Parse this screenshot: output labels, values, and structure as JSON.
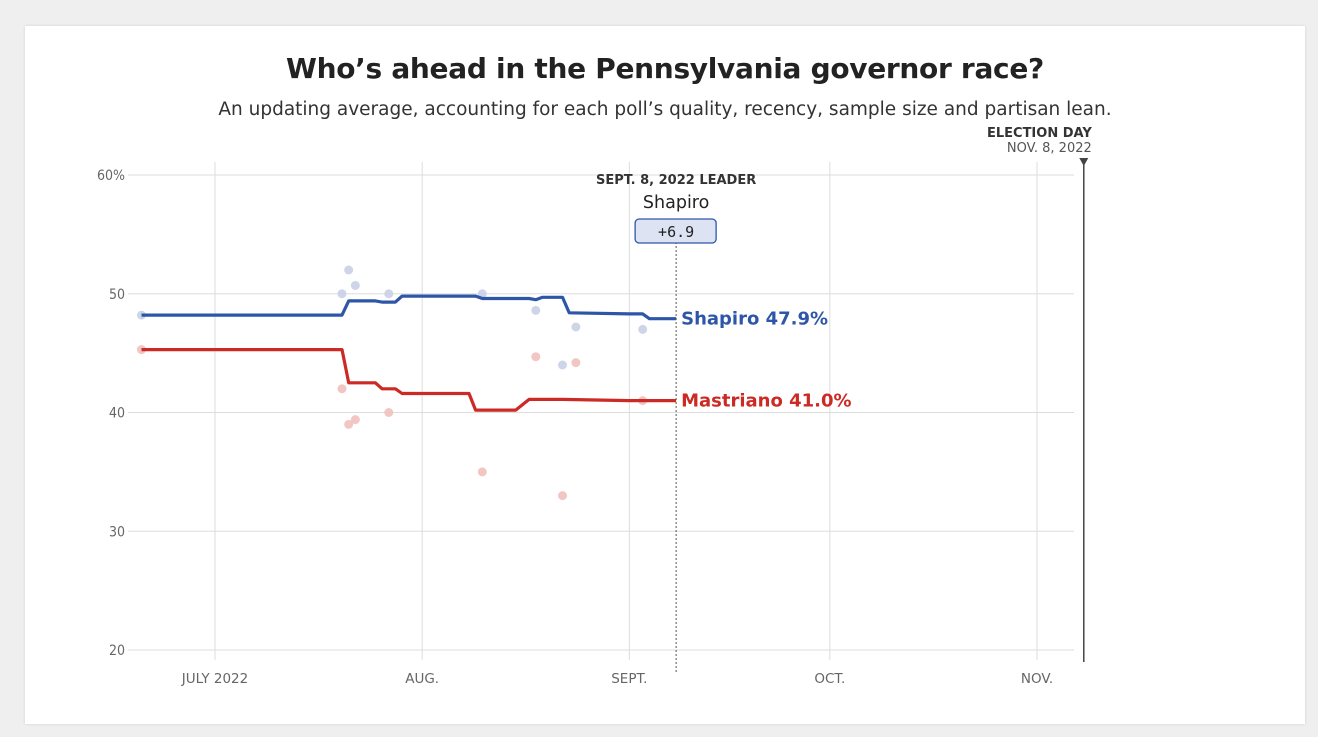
{
  "title": "Who’s ahead in the Pennsylvania governor race?",
  "subtitle": "An updating average, accounting for each poll’s quality, recency, sample size and partisan lean.",
  "election_day": {
    "label": "ELECTION DAY",
    "date": "NOV. 8, 2022"
  },
  "leader_box": {
    "label": "SEPT. 8, 2022 LEADER",
    "name": "Shapiro",
    "margin": "+6.9",
    "date": "2022-09-08"
  },
  "colors": {
    "shapiro": "#2e56a8",
    "mastriano": "#cc2a24",
    "shapiro_dot": "#c9d0e6",
    "mastriano_dot": "#f0c0bd",
    "grid": "#dddddd",
    "badge_fill": "#dde3f3"
  },
  "chart_data": {
    "type": "line",
    "x_axis": {
      "type": "date",
      "range": [
        "2022-06-20",
        "2022-11-08"
      ],
      "ticks": [
        {
          "date": "2022-07-01",
          "label": "JULY 2022"
        },
        {
          "date": "2022-08-01",
          "label": "AUG."
        },
        {
          "date": "2022-09-01",
          "label": "SEPT."
        },
        {
          "date": "2022-10-01",
          "label": "OCT."
        },
        {
          "date": "2022-11-01",
          "label": "NOV."
        }
      ]
    },
    "y_axis": {
      "range": [
        20,
        60
      ],
      "ticks": [
        {
          "value": 60,
          "label": "60%"
        },
        {
          "value": 50,
          "label": "50"
        },
        {
          "value": 40,
          "label": "40"
        },
        {
          "value": 30,
          "label": "30"
        },
        {
          "value": 20,
          "label": "20"
        }
      ]
    },
    "grid": true,
    "series": [
      {
        "name": "Shapiro",
        "label": "Shapiro 47.9%",
        "color": "#2e56a8",
        "points": [
          [
            "2022-06-20",
            48.2
          ],
          [
            "2022-07-20",
            48.2
          ],
          [
            "2022-07-21",
            49.4
          ],
          [
            "2022-07-25",
            49.4
          ],
          [
            "2022-07-26",
            49.3
          ],
          [
            "2022-07-28",
            49.3
          ],
          [
            "2022-07-29",
            49.8
          ],
          [
            "2022-08-09",
            49.8
          ],
          [
            "2022-08-10",
            49.6
          ],
          [
            "2022-08-17",
            49.6
          ],
          [
            "2022-08-18",
            49.5
          ],
          [
            "2022-08-19",
            49.7
          ],
          [
            "2022-08-22",
            49.7
          ],
          [
            "2022-08-23",
            48.4
          ],
          [
            "2022-09-01",
            48.3
          ],
          [
            "2022-09-03",
            48.3
          ],
          [
            "2022-09-04",
            47.9
          ],
          [
            "2022-09-08",
            47.9
          ]
        ],
        "polls": [
          [
            "2022-06-20",
            48.2
          ],
          [
            "2022-07-20",
            50.0
          ],
          [
            "2022-07-21",
            52.0
          ],
          [
            "2022-07-22",
            50.7
          ],
          [
            "2022-07-27",
            50.0
          ],
          [
            "2022-08-10",
            50.0
          ],
          [
            "2022-08-18",
            48.6
          ],
          [
            "2022-08-22",
            44.0
          ],
          [
            "2022-08-24",
            47.2
          ],
          [
            "2022-09-03",
            47.0
          ]
        ]
      },
      {
        "name": "Mastriano",
        "label": "Mastriano 41.0%",
        "color": "#cc2a24",
        "points": [
          [
            "2022-06-20",
            45.3
          ],
          [
            "2022-07-20",
            45.3
          ],
          [
            "2022-07-21",
            42.5
          ],
          [
            "2022-07-25",
            42.5
          ],
          [
            "2022-07-26",
            42.0
          ],
          [
            "2022-07-28",
            42.0
          ],
          [
            "2022-07-29",
            41.6
          ],
          [
            "2022-08-08",
            41.6
          ],
          [
            "2022-08-09",
            40.2
          ],
          [
            "2022-08-15",
            40.2
          ],
          [
            "2022-08-17",
            41.1
          ],
          [
            "2022-08-22",
            41.1
          ],
          [
            "2022-09-01",
            41.0
          ],
          [
            "2022-09-08",
            41.0
          ]
        ],
        "polls": [
          [
            "2022-06-20",
            45.3
          ],
          [
            "2022-07-20",
            42.0
          ],
          [
            "2022-07-21",
            39.0
          ],
          [
            "2022-07-22",
            39.4
          ],
          [
            "2022-07-27",
            40.0
          ],
          [
            "2022-08-10",
            35.0
          ],
          [
            "2022-08-18",
            44.7
          ],
          [
            "2022-08-22",
            33.0
          ],
          [
            "2022-08-24",
            44.2
          ],
          [
            "2022-09-03",
            41.0
          ]
        ]
      }
    ]
  }
}
